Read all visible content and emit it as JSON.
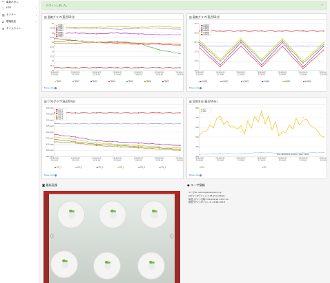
{
  "sidebar": {
    "top_label": "最新ボタン",
    "items": [
      {
        "label": "LED",
        "icon": "lightbulb-icon",
        "caret": "‹"
      },
      {
        "label": "センサー",
        "icon": "chart-icon",
        "caret": "‹"
      },
      {
        "label": "環境設定",
        "icon": "settings-icon",
        "caret": "‹"
      },
      {
        "label": "タイムライン",
        "icon": "timeline-icon",
        "caret": ""
      }
    ]
  },
  "alert": {
    "message": "ログインしました。",
    "close": "×"
  },
  "panels": {
    "temp": {
      "title": "温度グラフ(直近60分)",
      "more": "More info"
    },
    "humid": {
      "title": "湿度グラフ(直近60分)",
      "more": "More info"
    },
    "co2": {
      "title": "CO2グラフ(直近60分)",
      "more": "More info"
    },
    "soil": {
      "title": "培地水分(直近60分)",
      "more": "More info"
    }
  },
  "camera": {
    "title": "最新画像"
  },
  "user": {
    "title": "ユーザ情報",
    "lines": [
      "ユーザID: admin@example.co.jp",
      "ログインIPアドレス: 153.151.138.92",
      "前回ログイン日時: 2018/09/16 14:07:24",
      "前回ログインIPアドレス: 49.98.128.8"
    ]
  },
  "chart_data": [
    {
      "type": "line",
      "title": "温度グラフ(直近60分)",
      "x": [
        "2018/09/15 22:00:00",
        "2018/09/15 22:10:00",
        "2018/09/15 22:20:00",
        "2018/09/15 22:30:00",
        "2018/09/15 22:40:00",
        "2018/09/15 22:50:00",
        "2018/09/15 23:00:00"
      ],
      "ylim": [
        21,
        26
      ],
      "yticks": [
        "26",
        "25.5",
        "25",
        "24.5",
        "24",
        "23.5",
        "23",
        "22.5",
        "22",
        "21.5",
        "21"
      ],
      "series": [
        {
          "name": "TEMP1",
          "color": "#f0c419",
          "values": [
            25.6,
            25.6,
            25.6,
            25.7,
            25.6,
            25.7,
            25.6
          ]
        },
        {
          "name": "TEMP2",
          "color": "#9c9cf0",
          "values": [
            25.5,
            25.5,
            25.5,
            25.4,
            25.5,
            25.5,
            25.4
          ]
        },
        {
          "name": "TEMP3",
          "color": "#a93ac2",
          "values": [
            24.9,
            25.0,
            24.9,
            25.0,
            24.9,
            24.8,
            24.8
          ]
        },
        {
          "name": "TEMP4",
          "color": "#e24a4a",
          "values": [
            24.4,
            24.2,
            24.0,
            23.9,
            23.8,
            23.8,
            23.7
          ]
        },
        {
          "name": "TEMP5",
          "color": "#4ab04a",
          "values": [
            24.1,
            24.2,
            24.0,
            24.1,
            23.9,
            23.2,
            22.8
          ]
        },
        {
          "name": "TEMP6",
          "color": "#e87a2c",
          "values": [
            23.9,
            23.9,
            24.0,
            24.0,
            23.9,
            23.9,
            23.8
          ]
        },
        {
          "name": "TEMP7",
          "color": "#c04040",
          "values": [
            21.3,
            21.3,
            21.3,
            21.3,
            21.3,
            21.3,
            21.3
          ]
        }
      ]
    },
    {
      "type": "line",
      "title": "湿度グラフ(直近60分)",
      "x": [
        "2018/09/15 22:00:00",
        "2018/09/15 22:10:00",
        "2018/09/15 22:20:00",
        "2018/09/15 22:30:00",
        "2018/09/15 22:40:00",
        "2018/09/15 22:50:00",
        "2018/09/15 23:00:00"
      ],
      "ylim": [
        65,
        90
      ],
      "yticks": [
        "90 %",
        "85 %",
        "80 %",
        "75 %",
        "70 %",
        "65 %"
      ],
      "series": [
        {
          "name": "HUMID1",
          "color": "#c04040",
          "values": [
            86,
            86,
            86,
            86,
            86,
            86,
            86
          ]
        },
        {
          "name": "HUMID2",
          "color": "#9c9cf0",
          "values": [
            78,
            78,
            78,
            78,
            78,
            78,
            78
          ]
        },
        {
          "name": "HUMID3",
          "color": "#4ab04a",
          "values": [
            80,
            70,
            81,
            70,
            81,
            69,
            79
          ]
        },
        {
          "name": "HUMID4",
          "color": "#a93ac2",
          "values": [
            79,
            68,
            80,
            68,
            80,
            67,
            78
          ]
        },
        {
          "name": "HUMID5",
          "color": "#f0c419",
          "values": [
            81,
            71,
            82,
            71,
            82,
            70,
            80
          ]
        },
        {
          "name": "HUMID6",
          "color": "#e24a4a",
          "values": [
            77,
            67,
            78,
            67,
            78,
            66,
            76
          ]
        }
      ]
    },
    {
      "type": "line",
      "title": "CO2グラフ(直近60分)",
      "x": [
        "2018/09/15 22:00:00",
        "2018/09/15 22:10:00",
        "2018/09/15 22:20:00",
        "2018/09/15 22:30:00",
        "2018/09/15 22:40:00",
        "2018/09/15 22:50:00",
        "2018/09/15 23:00:00"
      ],
      "ylim": [
        400,
        440
      ],
      "yticks": [
        "440 ppm",
        "435 ppm",
        "430 ppm",
        "425 ppm",
        "420 ppm",
        "415 ppm",
        "410 ppm",
        "405 ppm",
        "400 ppm"
      ],
      "series": [
        {
          "name": "CO2_1",
          "color": "#c04040",
          "values": [
            436,
            436,
            436,
            436,
            436,
            436,
            436
          ]
        },
        {
          "name": "CO2_2",
          "color": "#9c9cf0",
          "values": [
            427,
            427,
            427,
            427,
            427,
            427,
            427
          ]
        },
        {
          "name": "CO2_3",
          "color": "#a93ac2",
          "values": [
            418,
            416,
            413,
            412,
            411,
            410,
            409
          ]
        },
        {
          "name": "CO2_4",
          "color": "#f0c419",
          "values": [
            416,
            414,
            411,
            410,
            409,
            408,
            407
          ]
        },
        {
          "name": "CO2_5",
          "color": "#4ab04a",
          "values": [
            414,
            412,
            410,
            409,
            408,
            407,
            406
          ]
        },
        {
          "name": "CO2_6",
          "color": "#e87a2c",
          "values": [
            412,
            411,
            409,
            408,
            407,
            406,
            405
          ]
        }
      ]
    },
    {
      "type": "line",
      "title": "培地水分(直近60分)",
      "x": [
        "2018/09/15 22:00:00",
        "2018/09/15 22:10:00",
        "2018/09/15 22:20:00",
        "2018/09/15 22:30:00",
        "2018/09/15 22:40:00",
        "2018/09/15 22:50:00",
        "2018/09/15 23:00:00"
      ],
      "ylim": [
        300,
        800
      ],
      "yticks": [
        "800",
        "700",
        "600",
        "500",
        "400",
        "300"
      ],
      "series": [
        {
          "name": "EC1",
          "color": "#f0c419",
          "values": [
            520,
            680,
            560,
            720,
            540,
            700,
            500
          ]
        },
        {
          "name": "EC2",
          "color": "#a9c9ee",
          "values": [
            320,
            330,
            325,
            340,
            330,
            335,
            340
          ]
        }
      ],
      "annotation": "Time: 2018/09/15 22:44:00 / Value: 348.00"
    }
  ]
}
